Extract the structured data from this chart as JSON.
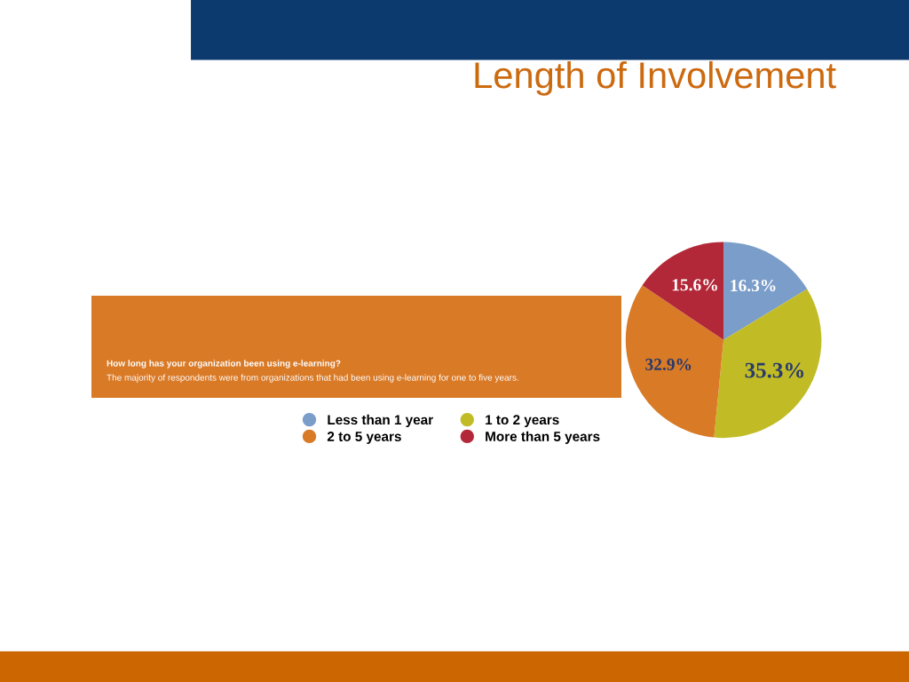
{
  "chart_data": {
    "type": "pie",
    "title": "Length of Involvement",
    "annotations": [
      "How long has your organization been using e-learning?",
      "The majority of respondents were from organizations that had been using e-learning for one to five years."
    ],
    "categories": [
      "Less than 1 year",
      "1 to 2 years",
      "2 to 5 years",
      "More than 5 years"
    ],
    "values": [
      16.3,
      35.3,
      32.9,
      15.6
    ],
    "colors": [
      "#7b9dc9",
      "#c1bc25",
      "#d97a27",
      "#b32838"
    ],
    "value_labels": [
      "16.3%",
      "35.3%",
      "32.9%",
      "15.6%"
    ],
    "legend": "bottom left"
  }
}
